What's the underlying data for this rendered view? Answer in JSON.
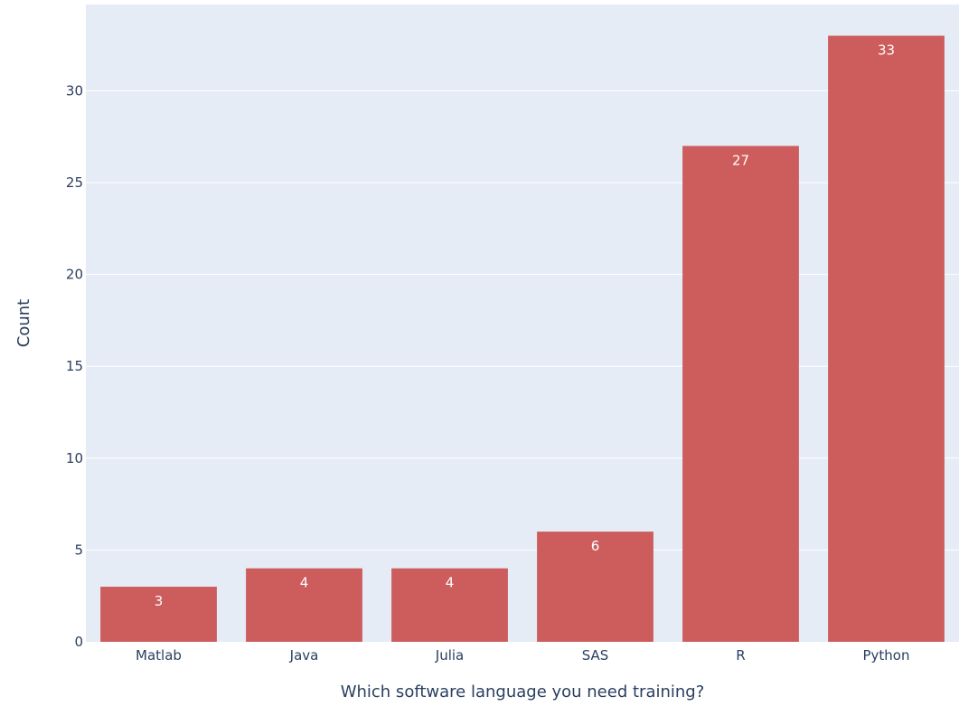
{
  "chart_data": {
    "type": "bar",
    "categories": [
      "Matlab",
      "Java",
      "Julia",
      "SAS",
      "R",
      "Python"
    ],
    "values": [
      3,
      4,
      4,
      6,
      27,
      33
    ],
    "data_labels": [
      "3",
      "4",
      "4",
      "6",
      "27",
      "33"
    ],
    "title": "",
    "xlabel": "Which software language you need training?",
    "ylabel": "Count",
    "ylim": [
      0,
      34.7
    ],
    "yticks": [
      0,
      5,
      10,
      15,
      20,
      25,
      30
    ],
    "ytick_labels": [
      "0",
      "5",
      "10",
      "15",
      "20",
      "25",
      "30"
    ],
    "grid": true,
    "legend": false,
    "colors": {
      "bar": "#cd5c5c",
      "plot_bg": "#e5ecf6",
      "grid": "#ffffff",
      "text": "#2a3f5f",
      "label": "#ffffff"
    }
  }
}
